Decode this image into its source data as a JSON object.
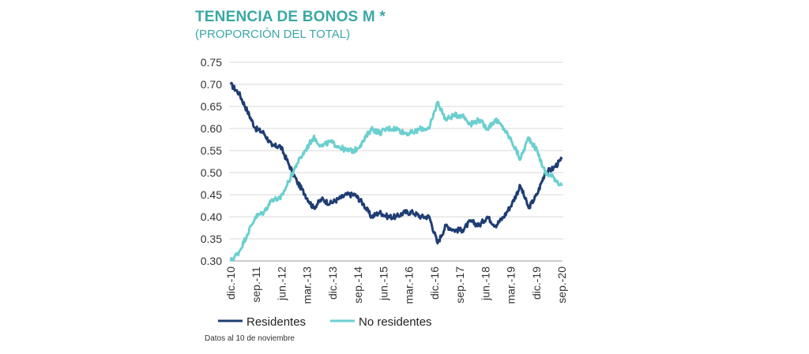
{
  "header": {
    "title": "TENENCIA DE BONOS M *",
    "subtitle": "(PROPORCIÓN DEL TOTAL)"
  },
  "footnote": "Datos al 10 de noviembre",
  "colors": {
    "residentes": "#1f3d73",
    "no_residentes": "#6ccfcf",
    "title": "#3aa8a4",
    "grid": "#d9d9d9"
  },
  "chart_data": {
    "type": "line",
    "title": "TENENCIA DE BONOS M *",
    "subtitle": "(PROPORCIÓN DEL TOTAL)",
    "ylim": [
      0.3,
      0.75
    ],
    "yticks": [
      "0.75",
      "0.70",
      "0.65",
      "0.60",
      "0.55",
      "0.50",
      "0.45",
      "0.40",
      "0.35",
      "0.30"
    ],
    "xticks": [
      "dic.-10",
      "sep.-11",
      "jun.-12",
      "mar.-13",
      "dic.-13",
      "sep.-14",
      "jun.-15",
      "mar.-16",
      "dic.-16",
      "sep.-17",
      "jun.-18",
      "mar.-19",
      "dic.-19",
      "sep.-20"
    ],
    "x": [
      "2010-12",
      "2011-03",
      "2011-06",
      "2011-09",
      "2011-12",
      "2012-03",
      "2012-06",
      "2012-09",
      "2012-12",
      "2013-03",
      "2013-06",
      "2013-09",
      "2013-12",
      "2014-03",
      "2014-06",
      "2014-09",
      "2014-12",
      "2015-03",
      "2015-06",
      "2015-09",
      "2015-12",
      "2016-03",
      "2016-06",
      "2016-09",
      "2016-12",
      "2017-03",
      "2017-06",
      "2017-09",
      "2017-12",
      "2018-03",
      "2018-06",
      "2018-09",
      "2018-12",
      "2019-03",
      "2019-06",
      "2019-09",
      "2019-12",
      "2020-03",
      "2020-06",
      "2020-09",
      "2020-11"
    ],
    "grid": true,
    "legend_position": "bottom-left",
    "series": [
      {
        "name": "Residentes",
        "values": [
          0.7,
          0.68,
          0.64,
          0.6,
          0.59,
          0.56,
          0.56,
          0.52,
          0.48,
          0.45,
          0.42,
          0.44,
          0.43,
          0.44,
          0.45,
          0.45,
          0.43,
          0.4,
          0.41,
          0.4,
          0.4,
          0.41,
          0.41,
          0.4,
          0.4,
          0.34,
          0.38,
          0.37,
          0.37,
          0.39,
          0.38,
          0.4,
          0.38,
          0.4,
          0.43,
          0.47,
          0.42,
          0.45,
          0.5,
          0.51,
          0.53
        ]
      },
      {
        "name": "No residentes",
        "values": [
          0.3,
          0.32,
          0.36,
          0.4,
          0.41,
          0.44,
          0.44,
          0.48,
          0.52,
          0.55,
          0.58,
          0.56,
          0.57,
          0.56,
          0.55,
          0.55,
          0.57,
          0.6,
          0.59,
          0.6,
          0.6,
          0.59,
          0.59,
          0.6,
          0.6,
          0.66,
          0.62,
          0.63,
          0.63,
          0.61,
          0.62,
          0.6,
          0.62,
          0.6,
          0.57,
          0.53,
          0.58,
          0.55,
          0.5,
          0.49,
          0.47
        ]
      }
    ]
  }
}
